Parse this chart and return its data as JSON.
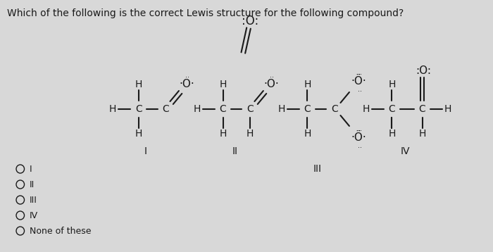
{
  "bg_color": "#d8d8d8",
  "question_text": "Which of the following is the correct Lewis structure for the following compound?",
  "question_fontsize": 10,
  "radio_options": [
    "I",
    "II",
    "III",
    "IV",
    "None of these"
  ],
  "text_color": "#1a1a1a",
  "bond_lw": 1.5,
  "fs": 10
}
